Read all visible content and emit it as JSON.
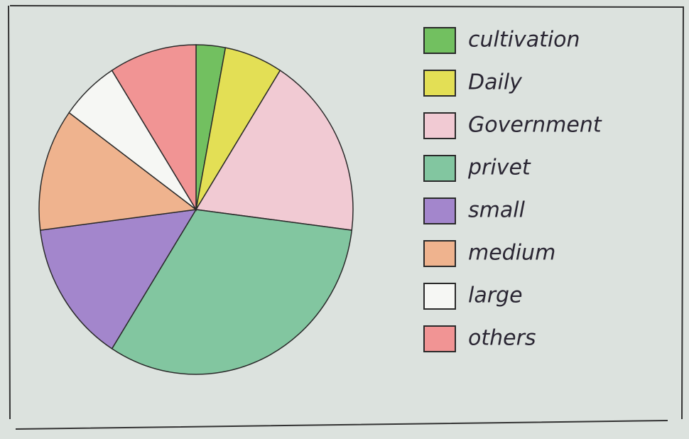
{
  "chart_data": {
    "type": "pie",
    "categories": [
      "cultivation",
      "Daily",
      "Government",
      "privet",
      "small",
      "medium",
      "large",
      "others"
    ],
    "values": [
      3,
      6,
      18,
      32,
      14,
      12,
      6,
      9
    ],
    "colors": [
      "#72c060",
      "#e3df55",
      "#f1cad3",
      "#82c6a0",
      "#a386cc",
      "#efb38e",
      "#f6f7f4",
      "#f19494"
    ],
    "legend": "right"
  }
}
